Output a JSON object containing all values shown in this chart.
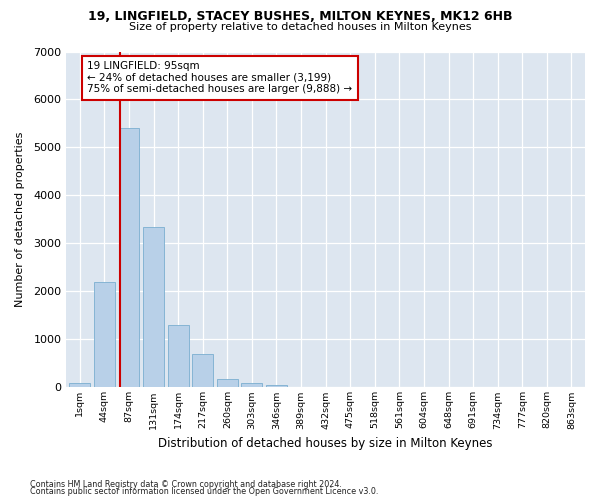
{
  "title1": "19, LINGFIELD, STACEY BUSHES, MILTON KEYNES, MK12 6HB",
  "title2": "Size of property relative to detached houses in Milton Keynes",
  "xlabel": "Distribution of detached houses by size in Milton Keynes",
  "ylabel": "Number of detached properties",
  "footer1": "Contains HM Land Registry data © Crown copyright and database right 2024.",
  "footer2": "Contains public sector information licensed under the Open Government Licence v3.0.",
  "annotation_line1": "19 LINGFIELD: 95sqm",
  "annotation_line2": "← 24% of detached houses are smaller (3,199)",
  "annotation_line3": "75% of semi-detached houses are larger (9,888) →",
  "bar_color": "#b8d0e8",
  "bar_edge_color": "#7aaed0",
  "redline_color": "#cc0000",
  "categories": [
    "1sqm",
    "44sqm",
    "87sqm",
    "131sqm",
    "174sqm",
    "217sqm",
    "260sqm",
    "303sqm",
    "346sqm",
    "389sqm",
    "432sqm",
    "475sqm",
    "518sqm",
    "561sqm",
    "604sqm",
    "648sqm",
    "691sqm",
    "734sqm",
    "777sqm",
    "820sqm",
    "863sqm"
  ],
  "values": [
    100,
    2200,
    5400,
    3350,
    1300,
    700,
    170,
    100,
    60,
    15,
    5,
    2,
    1,
    1,
    0,
    0,
    0,
    0,
    0,
    0,
    0
  ],
  "ylim": [
    0,
    7000
  ],
  "yticks": [
    0,
    1000,
    2000,
    3000,
    4000,
    5000,
    6000,
    7000
  ],
  "redline_x": 1.62,
  "bg_color": "#ffffff",
  "plot_bg_color": "#dde6f0"
}
